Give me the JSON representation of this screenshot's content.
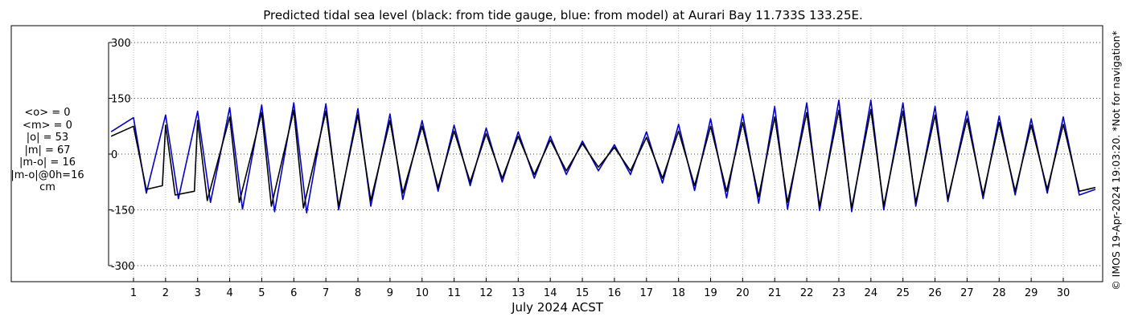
{
  "chart_data": {
    "type": "line",
    "title": "Predicted tidal sea level (black: from tide gauge, blue: from model) at Aurari Bay 11.733S 133.25E.",
    "xlabel": "July 2024 ACST",
    "ylabel": "",
    "xlim": [
      0.3,
      31.0
    ],
    "ylim": [
      -310,
      310
    ],
    "x_ticks": [
      1,
      2,
      3,
      4,
      5,
      6,
      7,
      8,
      9,
      10,
      11,
      12,
      13,
      14,
      15,
      16,
      17,
      18,
      19,
      20,
      21,
      22,
      23,
      24,
      25,
      26,
      27,
      28,
      29,
      30
    ],
    "x_tick_labels": [
      "1",
      "2",
      "3",
      "4",
      "5",
      "6",
      "7",
      "8",
      "9",
      "10",
      "11",
      "12",
      "13",
      "14",
      "15",
      "16",
      "17",
      "18",
      "19",
      "20",
      "21",
      "22",
      "23",
      "24",
      "25",
      "26",
      "27",
      "28",
      "29",
      "30"
    ],
    "y_ticks": [
      300,
      150,
      0,
      -150,
      -300
    ],
    "y_tick_labels": [
      "300",
      "150",
      "0",
      "-150",
      "-300"
    ],
    "grid": true,
    "series": [
      {
        "name": "tide gauge",
        "color": "#000000",
        "points": [
          [
            0.3,
            48
          ],
          [
            1.0,
            75
          ],
          [
            1.4,
            -95
          ],
          [
            1.9,
            -85
          ],
          [
            2.0,
            78
          ],
          [
            2.3,
            -110
          ],
          [
            2.9,
            -100
          ],
          [
            3.0,
            90
          ],
          [
            3.3,
            -125
          ],
          [
            4.0,
            100
          ],
          [
            4.3,
            -130
          ],
          [
            5.0,
            112
          ],
          [
            5.3,
            -140
          ],
          [
            6.0,
            118
          ],
          [
            6.3,
            -145
          ],
          [
            7.0,
            115
          ],
          [
            7.4,
            -140
          ],
          [
            8.0,
            105
          ],
          [
            8.4,
            -125
          ],
          [
            9.0,
            90
          ],
          [
            9.4,
            -105
          ],
          [
            10.0,
            75
          ],
          [
            10.5,
            -90
          ],
          [
            11.0,
            62
          ],
          [
            11.5,
            -75
          ],
          [
            12.0,
            55
          ],
          [
            12.5,
            -65
          ],
          [
            13.0,
            48
          ],
          [
            13.5,
            -55
          ],
          [
            14.0,
            38
          ],
          [
            14.5,
            -45
          ],
          [
            15.0,
            28
          ],
          [
            15.5,
            -35
          ],
          [
            16.0,
            18
          ],
          [
            16.5,
            -45
          ],
          [
            17.0,
            45
          ],
          [
            17.5,
            -65
          ],
          [
            18.0,
            62
          ],
          [
            18.5,
            -85
          ],
          [
            19.0,
            75
          ],
          [
            19.5,
            -100
          ],
          [
            20.0,
            85
          ],
          [
            20.5,
            -115
          ],
          [
            21.0,
            100
          ],
          [
            21.4,
            -130
          ],
          [
            22.0,
            112
          ],
          [
            22.4,
            -140
          ],
          [
            23.0,
            118
          ],
          [
            23.4,
            -145
          ],
          [
            24.0,
            120
          ],
          [
            24.4,
            -140
          ],
          [
            25.0,
            115
          ],
          [
            25.4,
            -130
          ],
          [
            26.0,
            105
          ],
          [
            26.4,
            -120
          ],
          [
            27.0,
            95
          ],
          [
            27.5,
            -110
          ],
          [
            28.0,
            85
          ],
          [
            28.5,
            -100
          ],
          [
            29.0,
            78
          ],
          [
            29.5,
            -95
          ],
          [
            30.0,
            80
          ],
          [
            30.5,
            -100
          ],
          [
            31.0,
            -90
          ]
        ]
      },
      {
        "name": "model",
        "color": "#0000cc",
        "points": [
          [
            0.3,
            60
          ],
          [
            1.0,
            98
          ],
          [
            1.4,
            -105
          ],
          [
            2.0,
            105
          ],
          [
            2.4,
            -120
          ],
          [
            3.0,
            115
          ],
          [
            3.4,
            -130
          ],
          [
            4.0,
            125
          ],
          [
            4.4,
            -148
          ],
          [
            5.0,
            132
          ],
          [
            5.4,
            -155
          ],
          [
            6.0,
            138
          ],
          [
            6.4,
            -158
          ],
          [
            7.0,
            135
          ],
          [
            7.4,
            -150
          ],
          [
            8.0,
            122
          ],
          [
            8.4,
            -140
          ],
          [
            9.0,
            108
          ],
          [
            9.4,
            -122
          ],
          [
            10.0,
            90
          ],
          [
            10.5,
            -100
          ],
          [
            11.0,
            78
          ],
          [
            11.5,
            -85
          ],
          [
            12.0,
            70
          ],
          [
            12.5,
            -75
          ],
          [
            13.0,
            60
          ],
          [
            13.5,
            -65
          ],
          [
            14.0,
            48
          ],
          [
            14.5,
            -55
          ],
          [
            15.0,
            35
          ],
          [
            15.5,
            -45
          ],
          [
            16.0,
            25
          ],
          [
            16.5,
            -55
          ],
          [
            17.0,
            60
          ],
          [
            17.5,
            -78
          ],
          [
            18.0,
            80
          ],
          [
            18.5,
            -98
          ],
          [
            19.0,
            95
          ],
          [
            19.5,
            -118
          ],
          [
            20.0,
            108
          ],
          [
            20.5,
            -132
          ],
          [
            21.0,
            128
          ],
          [
            21.4,
            -148
          ],
          [
            22.0,
            138
          ],
          [
            22.4,
            -152
          ],
          [
            23.0,
            145
          ],
          [
            23.4,
            -155
          ],
          [
            24.0,
            145
          ],
          [
            24.4,
            -150
          ],
          [
            25.0,
            138
          ],
          [
            25.4,
            -140
          ],
          [
            26.0,
            128
          ],
          [
            26.4,
            -128
          ],
          [
            27.0,
            115
          ],
          [
            27.5,
            -120
          ],
          [
            28.0,
            102
          ],
          [
            28.5,
            -110
          ],
          [
            29.0,
            95
          ],
          [
            29.5,
            -105
          ],
          [
            30.0,
            100
          ],
          [
            30.5,
            -110
          ],
          [
            31.0,
            -95
          ]
        ]
      }
    ]
  },
  "stats": {
    "mean_obs": "<o> = 0",
    "mean_model": "<m> = 0",
    "abs_obs": "|o| = 53",
    "abs_model": "|m| = 67",
    "abs_diff": "|m-o| = 16",
    "abs_diff_0h": "|m-o|@0h=16",
    "unit": "cm"
  },
  "side_note": "© IMOS 19-Apr-2024 19:03:20. *Not for navigation*"
}
